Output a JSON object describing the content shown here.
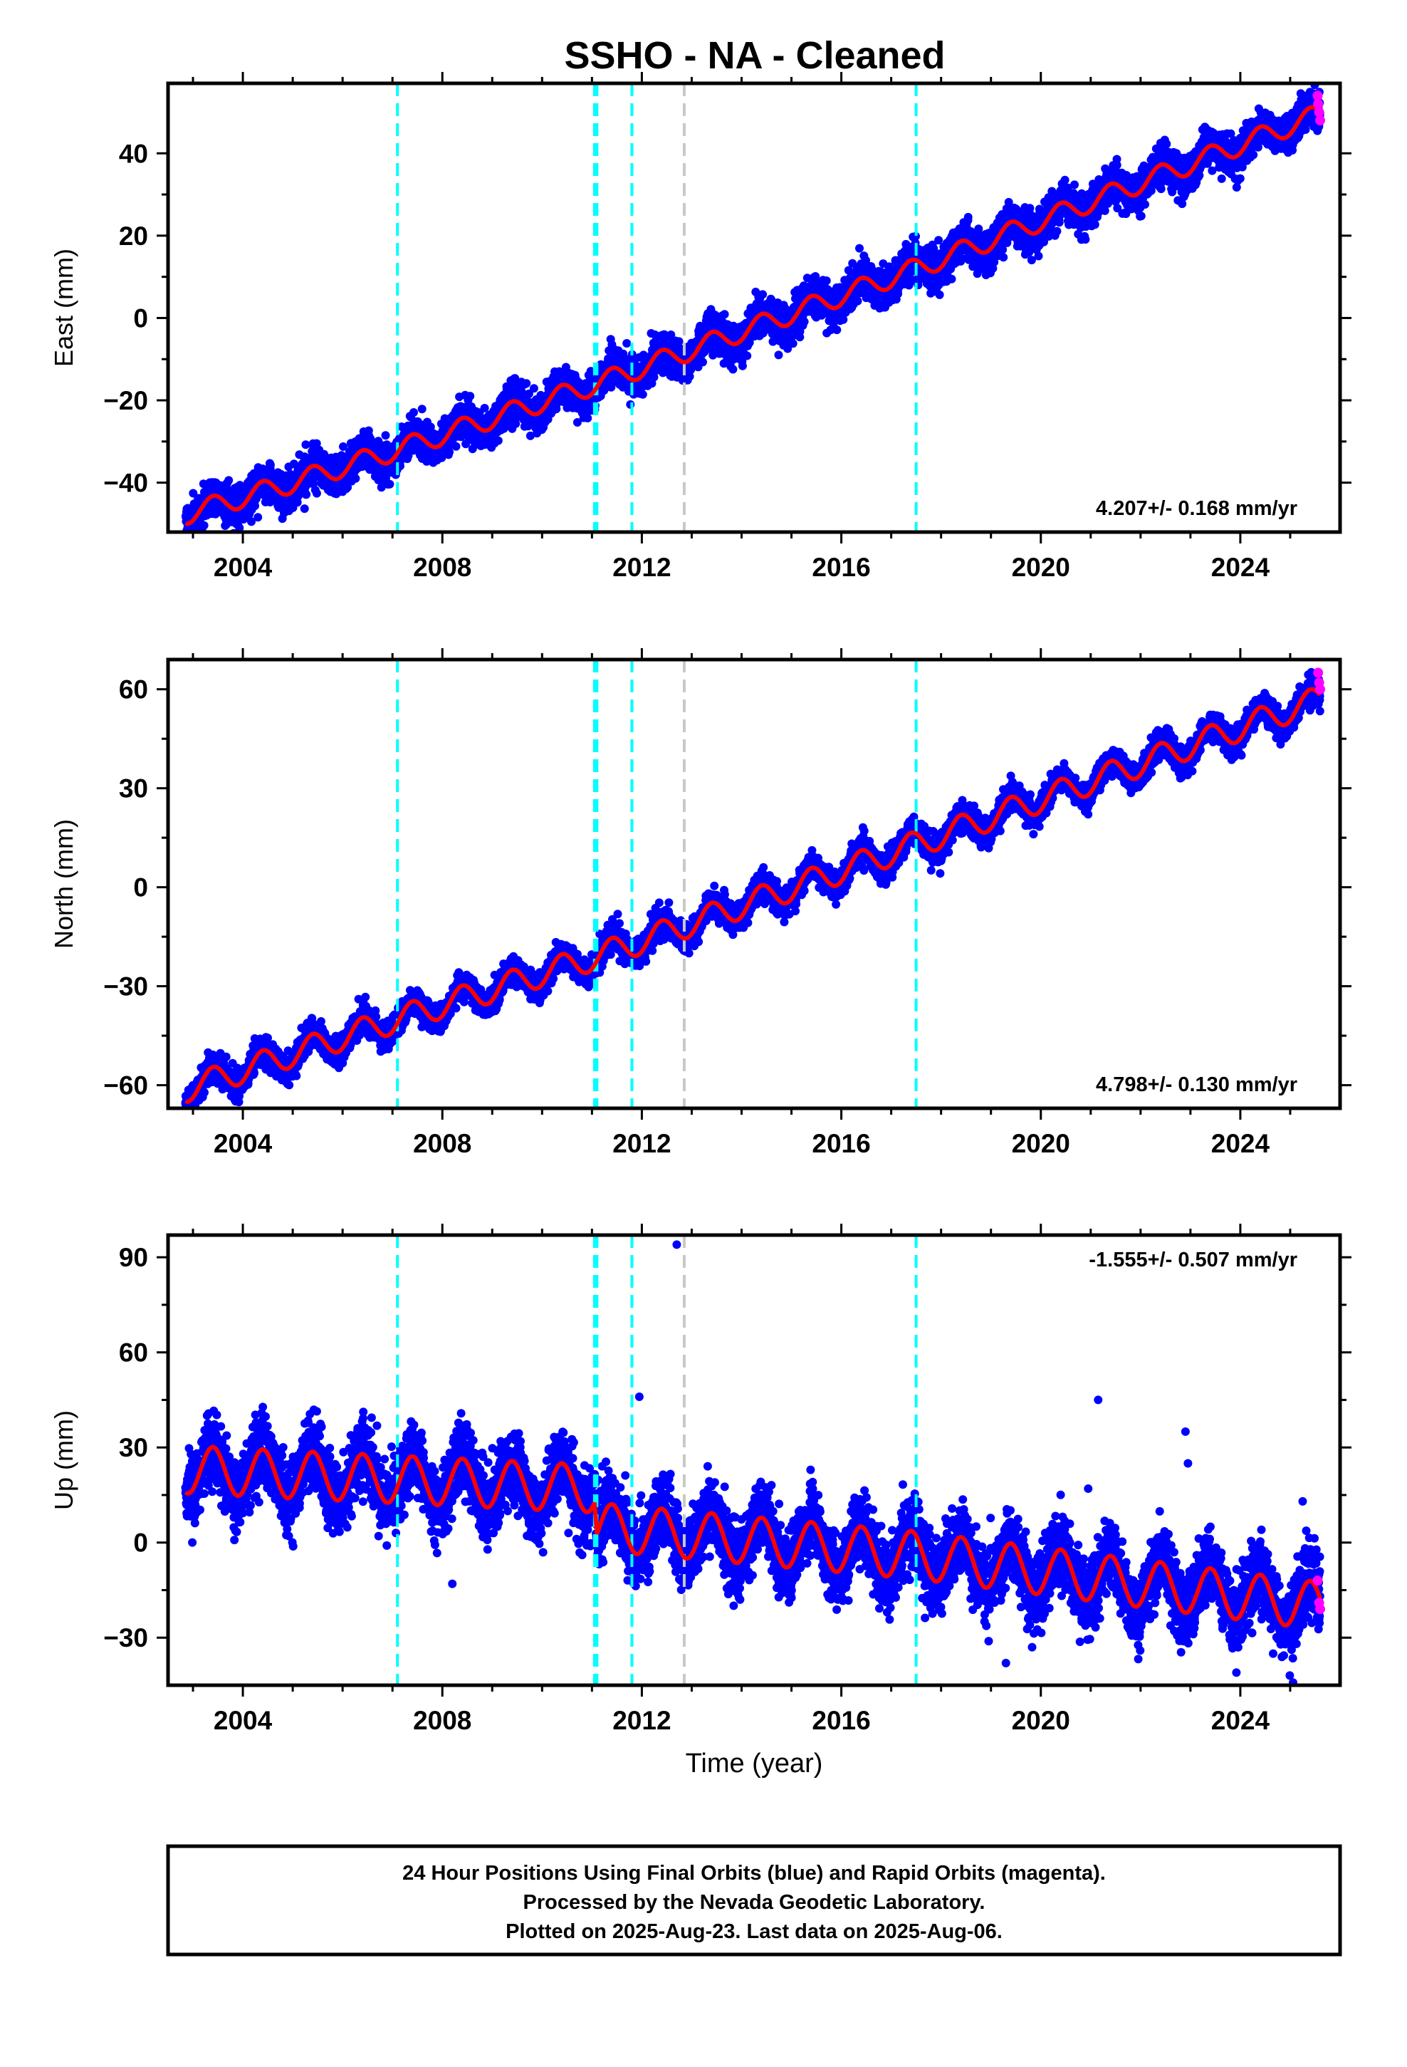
{
  "title": "SSHO  - NA - Cleaned",
  "x_axis_label": "Time (year)",
  "footer": {
    "line1": "24 Hour Positions Using Final Orbits (blue) and Rapid Orbits (magenta).",
    "line2": "Processed by the Nevada Geodetic Laboratory.",
    "line3": "Plotted on 2025-Aug-23. Last data on 2025-Aug-06."
  },
  "colors": {
    "final_orbits": "#0000ff",
    "rapid_orbits": "#ff00ff",
    "model": "#ff0000",
    "equipment_change": "#00ffff",
    "other_event": "#c8c8c8"
  },
  "chart_data": [
    {
      "type": "scatter",
      "component": "East",
      "ylabel": "East (mm)",
      "xlim": [
        2002.5,
        2026.0
      ],
      "ylim": [
        -52,
        57
      ],
      "xticks": [
        2004,
        2008,
        2012,
        2016,
        2020,
        2024
      ],
      "xtick_labels": [
        "2004",
        "2008",
        "2012",
        "2016",
        "2020",
        "2024"
      ],
      "yticks": [
        -40,
        -20,
        0,
        20,
        40
      ],
      "ytick_labels": [
        "−40",
        "−20",
        "0",
        "20",
        "40"
      ],
      "rate_label": "4.207+/- 0.168 mm/yr",
      "rate_position": "bottom-right",
      "data_start": 2002.85,
      "data_end": 2025.6,
      "trend": [
        [
          2002.9,
          -47.5
        ],
        [
          2005.0,
          -40.0
        ],
        [
          2007.1,
          -32.0
        ],
        [
          2011.1,
          -16.0
        ],
        [
          2017.5,
          12.0
        ],
        [
          2025.6,
          49.5
        ]
      ],
      "seasonal_amplitude": 2.5,
      "scatter_noise": 2.2,
      "outliers": [],
      "rapid_points": [
        [
          2025.55,
          54
        ],
        [
          2025.56,
          52
        ],
        [
          2025.58,
          50
        ],
        [
          2025.6,
          48
        ]
      ],
      "vertical_lines": [
        {
          "year": 2007.1,
          "kind": "equipment_change"
        },
        {
          "year": 2011.05,
          "kind": "equipment_change"
        },
        {
          "year": 2011.1,
          "kind": "equipment_change"
        },
        {
          "year": 2011.8,
          "kind": "equipment_change"
        },
        {
          "year": 2012.85,
          "kind": "other_event"
        },
        {
          "year": 2017.5,
          "kind": "equipment_change"
        }
      ]
    },
    {
      "type": "scatter",
      "component": "North",
      "ylabel": "North (mm)",
      "xlim": [
        2002.5,
        2026.0
      ],
      "ylim": [
        -67,
        69
      ],
      "xticks": [
        2004,
        2008,
        2012,
        2016,
        2020,
        2024
      ],
      "xtick_labels": [
        "2004",
        "2008",
        "2012",
        "2016",
        "2020",
        "2024"
      ],
      "yticks": [
        -60,
        -30,
        0,
        30,
        60
      ],
      "ytick_labels": [
        "−60",
        "−30",
        "0",
        "30",
        "60"
      ],
      "rate_label": "4.798+/- 0.130 mm/yr",
      "rate_position": "bottom-right",
      "data_start": 2002.85,
      "data_end": 2025.6,
      "trend": [
        [
          2002.9,
          -61.0
        ],
        [
          2007.1,
          -40.0
        ],
        [
          2011.1,
          -21.0
        ],
        [
          2017.5,
          13.0
        ],
        [
          2025.6,
          57.0
        ]
      ],
      "seasonal_amplitude": 4.0,
      "scatter_noise": 2.0,
      "outliers": [],
      "rapid_points": [
        [
          2025.56,
          65
        ],
        [
          2025.58,
          62
        ],
        [
          2025.6,
          60
        ]
      ],
      "vertical_lines": [
        {
          "year": 2007.1,
          "kind": "equipment_change"
        },
        {
          "year": 2011.05,
          "kind": "equipment_change"
        },
        {
          "year": 2011.1,
          "kind": "equipment_change"
        },
        {
          "year": 2011.8,
          "kind": "equipment_change"
        },
        {
          "year": 2012.85,
          "kind": "other_event"
        },
        {
          "year": 2017.5,
          "kind": "equipment_change"
        }
      ]
    },
    {
      "type": "scatter",
      "component": "Up",
      "ylabel": "Up (mm)",
      "xlim": [
        2002.5,
        2026.0
      ],
      "ylim": [
        -45,
        97
      ],
      "xticks": [
        2004,
        2008,
        2012,
        2016,
        2020,
        2024
      ],
      "xtick_labels": [
        "2004",
        "2008",
        "2012",
        "2016",
        "2020",
        "2024"
      ],
      "yticks": [
        -30,
        0,
        30,
        60,
        90
      ],
      "ytick_labels": [
        "−30",
        "0",
        "30",
        "60",
        "90"
      ],
      "rate_label": "-1.555+/- 0.507 mm/yr",
      "rate_position": "top-right",
      "data_start": 2002.85,
      "data_end": 2025.6,
      "trend": [
        [
          2002.9,
          23.0
        ],
        [
          2011.05,
          17.0
        ],
        [
          2011.1,
          5.0
        ],
        [
          2017.5,
          -4.0
        ],
        [
          2025.6,
          -20.0
        ]
      ],
      "seasonal_amplitude": 7.5,
      "scatter_noise": 5.5,
      "outliers": [
        [
          2012.7,
          94
        ],
        [
          2011.95,
          46
        ],
        [
          2021.15,
          45
        ],
        [
          2022.9,
          35
        ],
        [
          2020.95,
          17
        ],
        [
          2022.95,
          25
        ],
        [
          2023.4,
          5
        ],
        [
          2025.25,
          13
        ],
        [
          2008.2,
          -13
        ],
        [
          2019.3,
          -38
        ]
      ],
      "rapid_points": [
        [
          2025.55,
          -12
        ],
        [
          2025.58,
          -19
        ],
        [
          2025.6,
          -21
        ]
      ],
      "vertical_lines": [
        {
          "year": 2007.1,
          "kind": "equipment_change"
        },
        {
          "year": 2011.05,
          "kind": "equipment_change"
        },
        {
          "year": 2011.1,
          "kind": "equipment_change"
        },
        {
          "year": 2011.8,
          "kind": "equipment_change"
        },
        {
          "year": 2012.85,
          "kind": "other_event"
        },
        {
          "year": 2017.5,
          "kind": "equipment_change"
        }
      ]
    }
  ]
}
